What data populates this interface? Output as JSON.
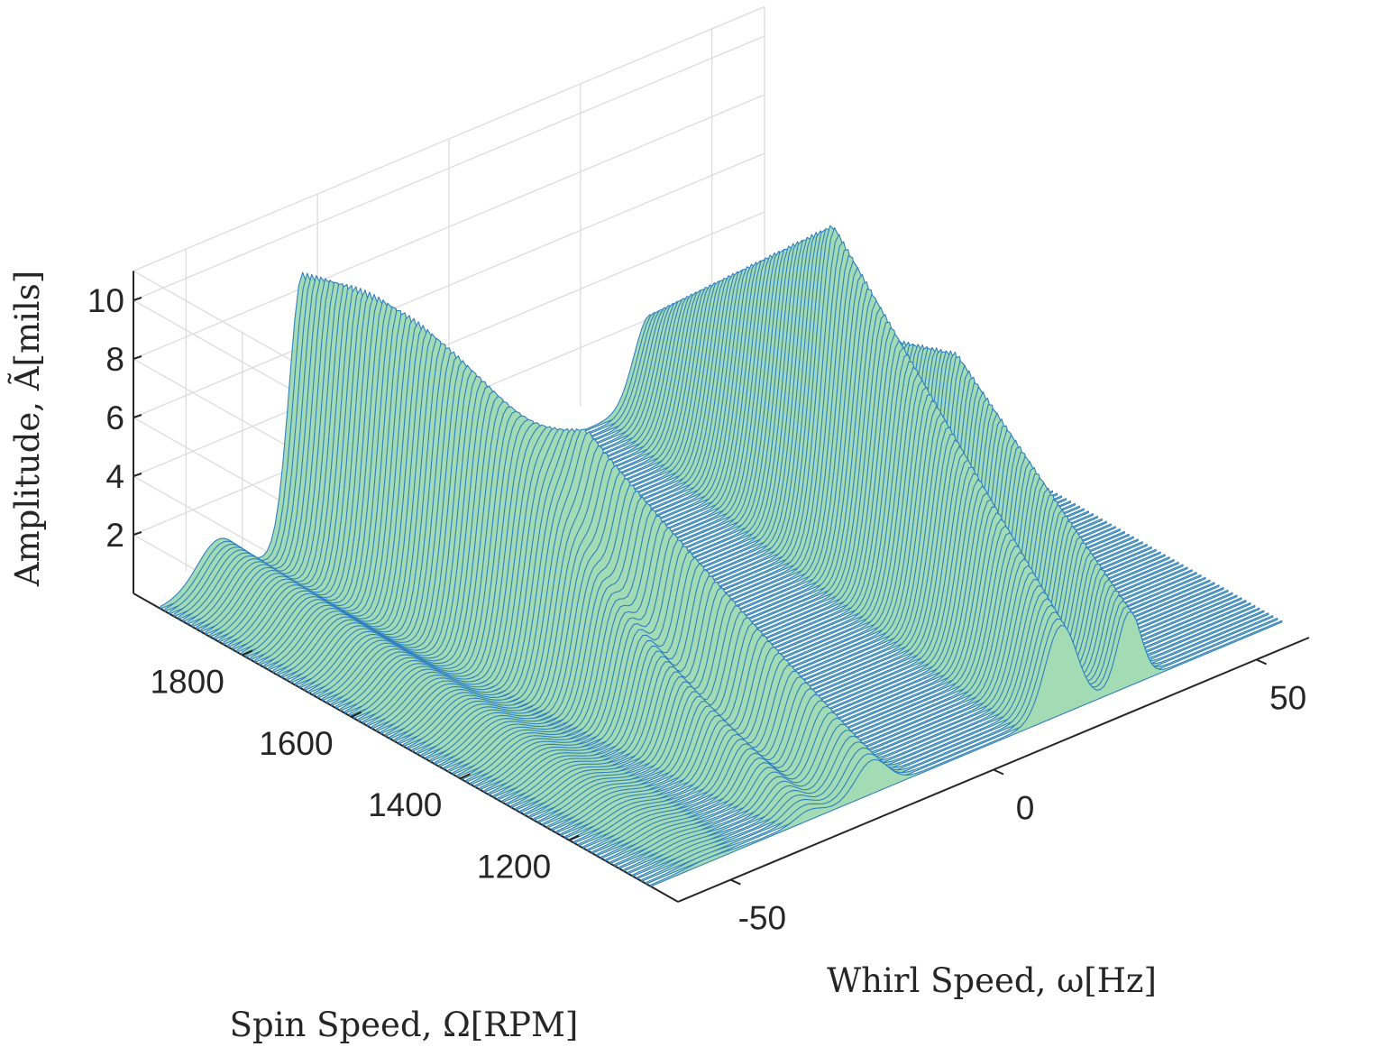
{
  "chart_data": {
    "type": "waterfall",
    "view": "3d",
    "grid": true,
    "colors": {
      "fill": "#a3dbb5",
      "edge": "#2f7fbf",
      "grid": "#dcdcdc",
      "axis": "#262626"
    },
    "xlabel": "Whirl Speed, ω[Hz]",
    "ylabel": "Spin Speed, Ω[RPM]",
    "zlabel": "Amplitude, Ã[mils]",
    "xlim": [
      -60,
      60
    ],
    "ylim": [
      1000,
      2000
    ],
    "zlim": [
      0,
      11
    ],
    "x_ticks": [
      -50,
      0,
      50
    ],
    "x_tick_labels": [
      "-50",
      "0",
      "50"
    ],
    "y_ticks": [
      1200,
      1400,
      1600,
      1800
    ],
    "y_tick_labels": [
      "1200",
      "1400",
      "1600",
      "1800"
    ],
    "z_ticks": [
      2,
      4,
      6,
      8,
      10
    ],
    "z_tick_labels": [
      "2",
      "4",
      "6",
      "8",
      "10"
    ],
    "x_grid": [
      -50,
      -25,
      0,
      25,
      50
    ],
    "y_grid": [
      1200,
      1400,
      1600,
      1800
    ],
    "spin_speed_range_rpm": [
      1050,
      1950
    ],
    "slice_count": 110,
    "peaks": [
      {
        "label": "backward whirl near 1x",
        "whirl_hz_at_rpm": [
          [
            1050,
            -18
          ],
          [
            1950,
            -33
          ]
        ],
        "amplitude_mils_at_rpm": [
          [
            1050,
            1.1
          ],
          [
            1500,
            8.0
          ],
          [
            1950,
            0.9
          ]
        ],
        "width_hz": 3.0
      },
      {
        "label": "forward whirl near 1x",
        "whirl_hz_at_rpm": [
          [
            1050,
            18
          ],
          [
            1950,
            33
          ]
        ],
        "amplitude_mils_at_rpm": [
          [
            1050,
            3.0
          ],
          [
            1550,
            10.8
          ],
          [
            1950,
            3.0
          ]
        ],
        "width_hz": 3.0
      },
      {
        "label": "forward whirl second peak",
        "whirl_hz_at_rpm": [
          [
            1050,
            31
          ],
          [
            1950,
            50
          ]
        ],
        "amplitude_mils_at_rpm": [
          [
            1050,
            2.5
          ],
          [
            1450,
            6.5
          ],
          [
            1950,
            2.0
          ]
        ],
        "width_hz": 2.2
      },
      {
        "label": "backward ridge high speed",
        "whirl_hz_at_rpm": [
          [
            1050,
            -30
          ],
          [
            1950,
            -33
          ]
        ],
        "amplitude_mils_at_rpm": [
          [
            1050,
            0.3
          ],
          [
            1950,
            8.5
          ]
        ],
        "width_hz": 2.5
      },
      {
        "label": "low-speed side ridge",
        "whirl_hz_at_rpm": [
          [
            1050,
            -49
          ],
          [
            1950,
            -49
          ]
        ],
        "amplitude_mils_at_rpm": [
          [
            1050,
            0.1
          ],
          [
            1950,
            1.5
          ]
        ],
        "width_hz": 4.0
      }
    ]
  }
}
